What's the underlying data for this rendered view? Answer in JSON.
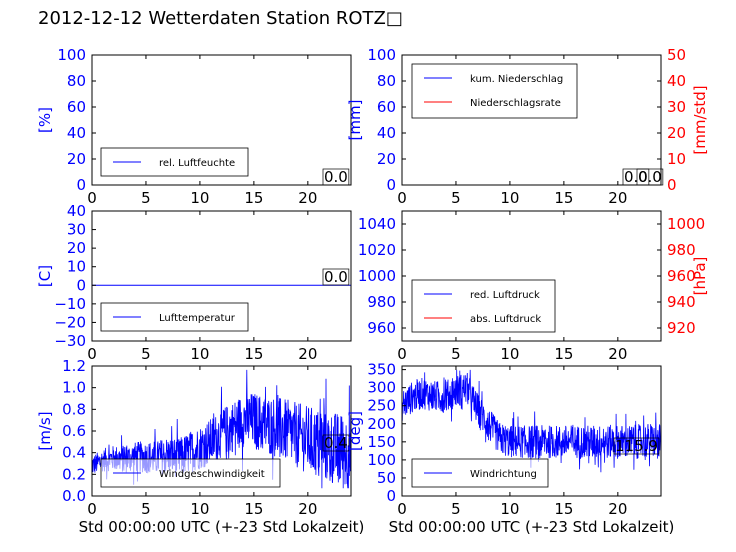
{
  "title": "2012-12-12 Wetterdaten Station ROTZ",
  "title_suffix": "□",
  "colors": {
    "blue": "#0000ff",
    "red": "#ff0000",
    "black": "#000000"
  },
  "chart_data": [
    {
      "type": "line",
      "ylabel_left": "[%]",
      "xlim": [
        0,
        24
      ],
      "ylim_left": [
        0,
        100
      ],
      "xticks": [
        "0",
        "5",
        "10",
        "15",
        "20"
      ],
      "yticks_left": [
        "0",
        "20",
        "40",
        "60",
        "80",
        "100"
      ],
      "legend": "lower-left",
      "series": [
        {
          "name": "rel. Luftfeuchte",
          "color": "#0000ff",
          "x": [
            0,
            24
          ],
          "y": [
            0,
            0
          ]
        }
      ],
      "annotations": [
        "0.0"
      ]
    },
    {
      "type": "line",
      "ylabel_left": "[mm]",
      "ylabel_right": "[mm/std]",
      "xlim": [
        0,
        24
      ],
      "ylim_left": [
        0,
        100
      ],
      "ylim_right": [
        0,
        50
      ],
      "xticks": [
        "0",
        "5",
        "10",
        "15",
        "20"
      ],
      "yticks_left": [
        "0",
        "20",
        "40",
        "60",
        "80",
        "100"
      ],
      "yticks_right": [
        "0",
        "10",
        "20",
        "30",
        "40",
        "50"
      ],
      "legend": "upper-left",
      "series": [
        {
          "name": "kum. Niederschlag",
          "color": "#0000ff",
          "x": [
            0,
            24
          ],
          "y": [
            0,
            0
          ]
        },
        {
          "name": "Niederschlagsrate",
          "color": "#ff0000",
          "x": [
            0,
            24
          ],
          "y": [
            0,
            0
          ]
        }
      ],
      "annotations": [
        "0.0",
        "0.0"
      ]
    },
    {
      "type": "line",
      "ylabel_left": "[C]",
      "xlim": [
        0,
        24
      ],
      "ylim_left": [
        -30,
        40
      ],
      "xticks": [
        "0",
        "5",
        "10",
        "15",
        "20"
      ],
      "yticks_left": [
        "−30",
        "−20",
        "−10",
        "0",
        "10",
        "20",
        "30",
        "40"
      ],
      "legend": "lower-left",
      "series": [
        {
          "name": "Lufttemperatur",
          "color": "#0000ff",
          "x": [
            0,
            24
          ],
          "y": [
            0,
            0
          ]
        }
      ],
      "annotations": [
        "0.0"
      ]
    },
    {
      "type": "line",
      "ylabel_right": "[hPa]",
      "xlim": [
        0,
        24
      ],
      "ylim_left": [
        950,
        1050
      ],
      "ylim_right": [
        910,
        1010
      ],
      "xticks": [
        "0",
        "5",
        "10",
        "15",
        "20"
      ],
      "yticks_left": [
        "960",
        "980",
        "1000",
        "1020",
        "1040"
      ],
      "yticks_right": [
        "920",
        "940",
        "960",
        "980",
        "1000"
      ],
      "legend": "lower-left",
      "series": [
        {
          "name": "red. Luftdruck",
          "color": "#0000ff",
          "x": [],
          "y": []
        },
        {
          "name": "abs. Luftdruck",
          "color": "#ff0000",
          "x": [],
          "y": []
        }
      ]
    },
    {
      "type": "line",
      "ylabel_left": "[m/s]",
      "xlabel": "Std 00:00:00 UTC (+-23 Std Lokalzeit)",
      "xlim": [
        0,
        24
      ],
      "ylim_left": [
        0,
        1.2
      ],
      "xticks": [
        "0",
        "5",
        "10",
        "15",
        "20"
      ],
      "yticks_left": [
        "0.0",
        "0.2",
        "0.4",
        "0.6",
        "0.8",
        "1.0",
        "1.2"
      ],
      "legend": "lower-left",
      "series": [
        {
          "name": "Windgeschwindigkeit",
          "color": "#0000ff",
          "x": [
            0,
            1,
            2,
            3,
            4,
            5,
            6,
            7,
            8,
            9,
            10,
            11,
            12,
            13,
            14,
            15,
            16,
            17,
            18,
            19,
            20,
            21,
            22,
            23,
            24
          ],
          "y": [
            0.28,
            0.33,
            0.35,
            0.34,
            0.36,
            0.36,
            0.35,
            0.38,
            0.35,
            0.4,
            0.45,
            0.5,
            0.58,
            0.64,
            0.7,
            0.7,
            0.66,
            0.64,
            0.6,
            0.56,
            0.52,
            0.48,
            0.45,
            0.42,
            0.4
          ],
          "noise": [
            0.12,
            0.45
          ]
        }
      ],
      "annotations": [
        "0.4"
      ]
    },
    {
      "type": "line",
      "ylabel_left": "[deg]",
      "xlabel": "Std 00:00:00 UTC (+-23 Std Lokalzeit)",
      "xlim": [
        0,
        24
      ],
      "ylim_left": [
        0,
        360
      ],
      "xticks": [
        "0",
        "5",
        "10",
        "15",
        "20"
      ],
      "yticks_left": [
        "0",
        "50",
        "100",
        "150",
        "200",
        "250",
        "300",
        "350"
      ],
      "legend": "lower-left",
      "series": [
        {
          "name": "Windrichtung",
          "color": "#0000ff",
          "x": [
            0,
            1,
            2,
            3,
            4,
            5,
            6,
            7,
            8,
            9,
            10,
            11,
            12,
            13,
            14,
            15,
            16,
            17,
            18,
            19,
            20,
            21,
            22,
            23,
            24
          ],
          "y": [
            250,
            275,
            285,
            275,
            275,
            290,
            300,
            240,
            200,
            160,
            150,
            150,
            150,
            150,
            150,
            150,
            150,
            150,
            150,
            150,
            150,
            150,
            150,
            155,
            150
          ],
          "noise": [
            55,
            60
          ]
        }
      ],
      "annotations": [
        "115.9"
      ]
    }
  ]
}
